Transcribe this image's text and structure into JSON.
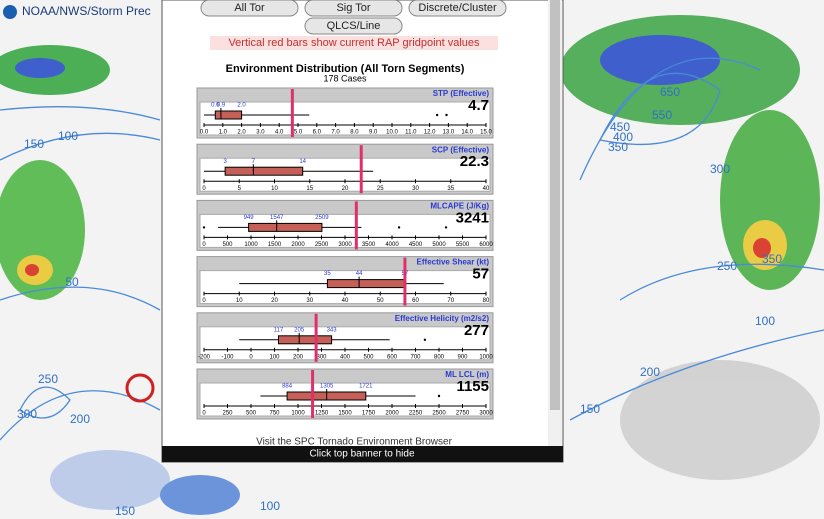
{
  "header": {
    "title": "NOAA/NWS/Storm Prec"
  },
  "map": {
    "labels": [
      {
        "text": "150",
        "x": 34,
        "y": 145
      },
      {
        "text": "100",
        "x": 68,
        "y": 137
      },
      {
        "text": "50",
        "x": 72,
        "y": 283
      },
      {
        "text": "250",
        "x": 48,
        "y": 380
      },
      {
        "text": "300",
        "x": 27,
        "y": 415
      },
      {
        "text": "200",
        "x": 80,
        "y": 420
      },
      {
        "text": "150",
        "x": 125,
        "y": 512
      },
      {
        "text": "100",
        "x": 270,
        "y": 507
      },
      {
        "text": "650",
        "x": 670,
        "y": 93
      },
      {
        "text": "550",
        "x": 662,
        "y": 116
      },
      {
        "text": "450",
        "x": 620,
        "y": 128
      },
      {
        "text": "400",
        "x": 623,
        "y": 138
      },
      {
        "text": "350",
        "x": 618,
        "y": 148
      },
      {
        "text": "300",
        "x": 720,
        "y": 170
      },
      {
        "text": "250",
        "x": 727,
        "y": 267
      },
      {
        "text": "350",
        "x": 772,
        "y": 260
      },
      {
        "text": "200",
        "x": 650,
        "y": 373
      },
      {
        "text": "100",
        "x": 765,
        "y": 322
      },
      {
        "text": "150",
        "x": 590,
        "y": 410
      }
    ]
  },
  "popup": {
    "buttons": [
      "All Tor",
      "Sig Tor",
      "Discrete/Cluster",
      "QLCS/Line"
    ],
    "note": "Vertical red bars show current RAP gridpoint values",
    "title": "Environment Distribution (All Torn Segments)",
    "subtitle": "178 Cases",
    "panels": [
      {
        "title": "STP (Effective)",
        "current": 4.7,
        "xlim": [
          0,
          15
        ],
        "xticks": [
          {
            "value": 0,
            "label": "0.0"
          },
          {
            "value": 1,
            "label": "1.0"
          },
          {
            "value": 2,
            "label": "2.0"
          },
          {
            "value": 3,
            "label": "3.0"
          },
          {
            "value": 4,
            "label": "4.0"
          },
          {
            "value": 5,
            "label": "5.0"
          },
          {
            "value": 6,
            "label": "6.0"
          },
          {
            "value": 7,
            "label": "7.0"
          },
          {
            "value": 8,
            "label": "8.0"
          },
          {
            "value": 9,
            "label": "9.0"
          },
          {
            "value": 10,
            "label": "10.0"
          },
          {
            "value": 11,
            "label": "11.0"
          },
          {
            "value": 12,
            "label": "12.0"
          },
          {
            "value": 13,
            "label": "13.0"
          },
          {
            "value": 14,
            "label": "14.0"
          },
          {
            "value": 15,
            "label": "15.0"
          }
        ],
        "box": [
          0.6,
          0.9,
          2.0
        ],
        "box_labels": [
          "0.6",
          "0.9",
          "2.0"
        ],
        "whiskers": [
          0,
          5.6
        ],
        "outliers": [
          12.4,
          12.9
        ]
      },
      {
        "title": "SCP (Effective)",
        "current": 22.3,
        "xlim": [
          0,
          40
        ],
        "xticks": [
          0,
          5,
          10,
          15,
          20,
          25,
          30,
          35,
          40
        ],
        "box": [
          3,
          7,
          14
        ],
        "whiskers": [
          0,
          24
        ],
        "outliers": []
      },
      {
        "title": "MLCAPE (J/Kg)",
        "current": 3241,
        "xlim": [
          0,
          6000
        ],
        "xticks": [
          0,
          500,
          1000,
          1500,
          2000,
          2500,
          3000,
          3500,
          4000,
          4500,
          5000,
          5500,
          6000
        ],
        "box": [
          949,
          1547,
          2509
        ],
        "whiskers": [
          300,
          3350
        ],
        "outliers": [
          0,
          4150,
          5150
        ]
      },
      {
        "title": "Effective Shear (kt)",
        "current": 57,
        "xlim": [
          0,
          80
        ],
        "xticks": [
          0,
          10,
          20,
          30,
          40,
          50,
          60,
          70,
          80
        ],
        "box": [
          35,
          44,
          57
        ],
        "whiskers": [
          10,
          68
        ],
        "outliers": []
      },
      {
        "title": "Effective Helicity (m2/s2)",
        "current": 277,
        "xlim": [
          -200,
          1000
        ],
        "xticks": [
          -200,
          -100,
          0,
          100,
          200,
          300,
          400,
          500,
          600,
          700,
          800,
          900,
          1000
        ],
        "box": [
          117,
          205,
          343
        ],
        "whiskers": [
          -50,
          590
        ],
        "outliers": [
          740
        ]
      },
      {
        "title": "ML LCL (m)",
        "current": 1155,
        "xlim": [
          0,
          3000
        ],
        "xticks": [
          0,
          250,
          500,
          750,
          1000,
          1250,
          1500,
          1750,
          2000,
          2250,
          2500,
          2750,
          3000
        ],
        "box": [
          884,
          1305,
          1721
        ],
        "whiskers": [
          600,
          2250
        ],
        "outliers": [
          2500
        ]
      }
    ],
    "footer_link": "Visit the SPC Tornado Environment Browser",
    "hide_bar": "Click top banner to hide"
  }
}
